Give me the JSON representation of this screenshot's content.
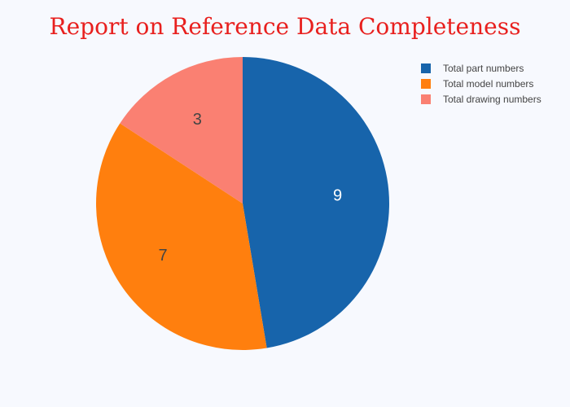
{
  "chart_data": {
    "type": "pie",
    "title": "Report on Reference Data Completeness",
    "categories": [
      "Total part numbers",
      "Total model numbers",
      "Total drawing numbers"
    ],
    "values": [
      9,
      7,
      3
    ],
    "colors": [
      "#1764ab",
      "#ff7f0e",
      "#fa8072"
    ],
    "label_colors": [
      "#ffffff",
      "#444444",
      "#444444"
    ],
    "legend_position": "top-right",
    "direction": "clockwise",
    "start": "top"
  }
}
